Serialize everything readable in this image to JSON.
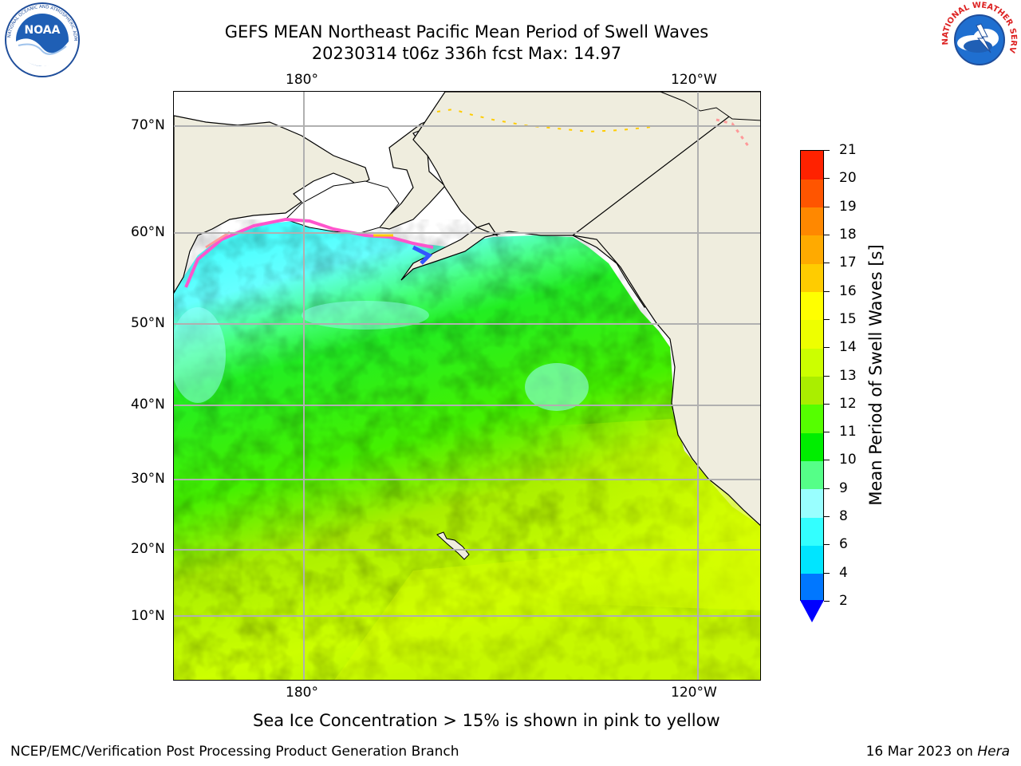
{
  "header": {
    "title_line1": "GEFS MEAN Northeast Pacific Mean Period of Swell Waves",
    "title_line2": "20230314 t06z 336h fcst   Max: 14.97"
  },
  "logos": {
    "left": {
      "name": "noaa-logo",
      "text": "NOAA",
      "ring_text": "NATIONAL OCEANIC AND ATMOSPHERIC ADMINISTRATION · U.S. DEPARTMENT OF COMMERCE"
    },
    "right": {
      "name": "nws-logo",
      "ring_text": "NATIONAL WEATHER SERVICE"
    }
  },
  "map": {
    "lon_labels": [
      "180°",
      "120°W"
    ],
    "lat_labels": [
      "70°N",
      "60°N",
      "50°N",
      "40°N",
      "30°N",
      "20°N",
      "10°N"
    ],
    "colors": {
      "land": "#efedde",
      "no_data": "#ffffff",
      "grid": "#b0b0b0",
      "coast": "#000000"
    },
    "sea_ice_colors": [
      "#ff55cc",
      "#ff9999",
      "#ffcc00"
    ]
  },
  "colorbar": {
    "title": "Mean Period of Swell Waves [s]",
    "tick_labels": [
      "2",
      "4",
      "6",
      "8",
      "9",
      "10",
      "11",
      "12",
      "13",
      "14",
      "15",
      "16",
      "17",
      "18",
      "19",
      "20",
      "21"
    ],
    "colors": [
      "#0077ff",
      "#00e5ff",
      "#33ffff",
      "#99ffff",
      "#55ff88",
      "#00ee00",
      "#55ff00",
      "#aaee00",
      "#ccff00",
      "#eeff00",
      "#ffff00",
      "#ffcc00",
      "#ffaa00",
      "#ff8800",
      "#ff5500",
      "#ff2200"
    ],
    "underflow_color": "#0000ff"
  },
  "footer": {
    "note": "Sea Ice Concentration > 15% is shown in pink to yellow",
    "credit": "NCEP/EMC/Verification Post Processing Product Generation Branch",
    "date": "16 Mar 2023 on",
    "machine": "Hera"
  }
}
